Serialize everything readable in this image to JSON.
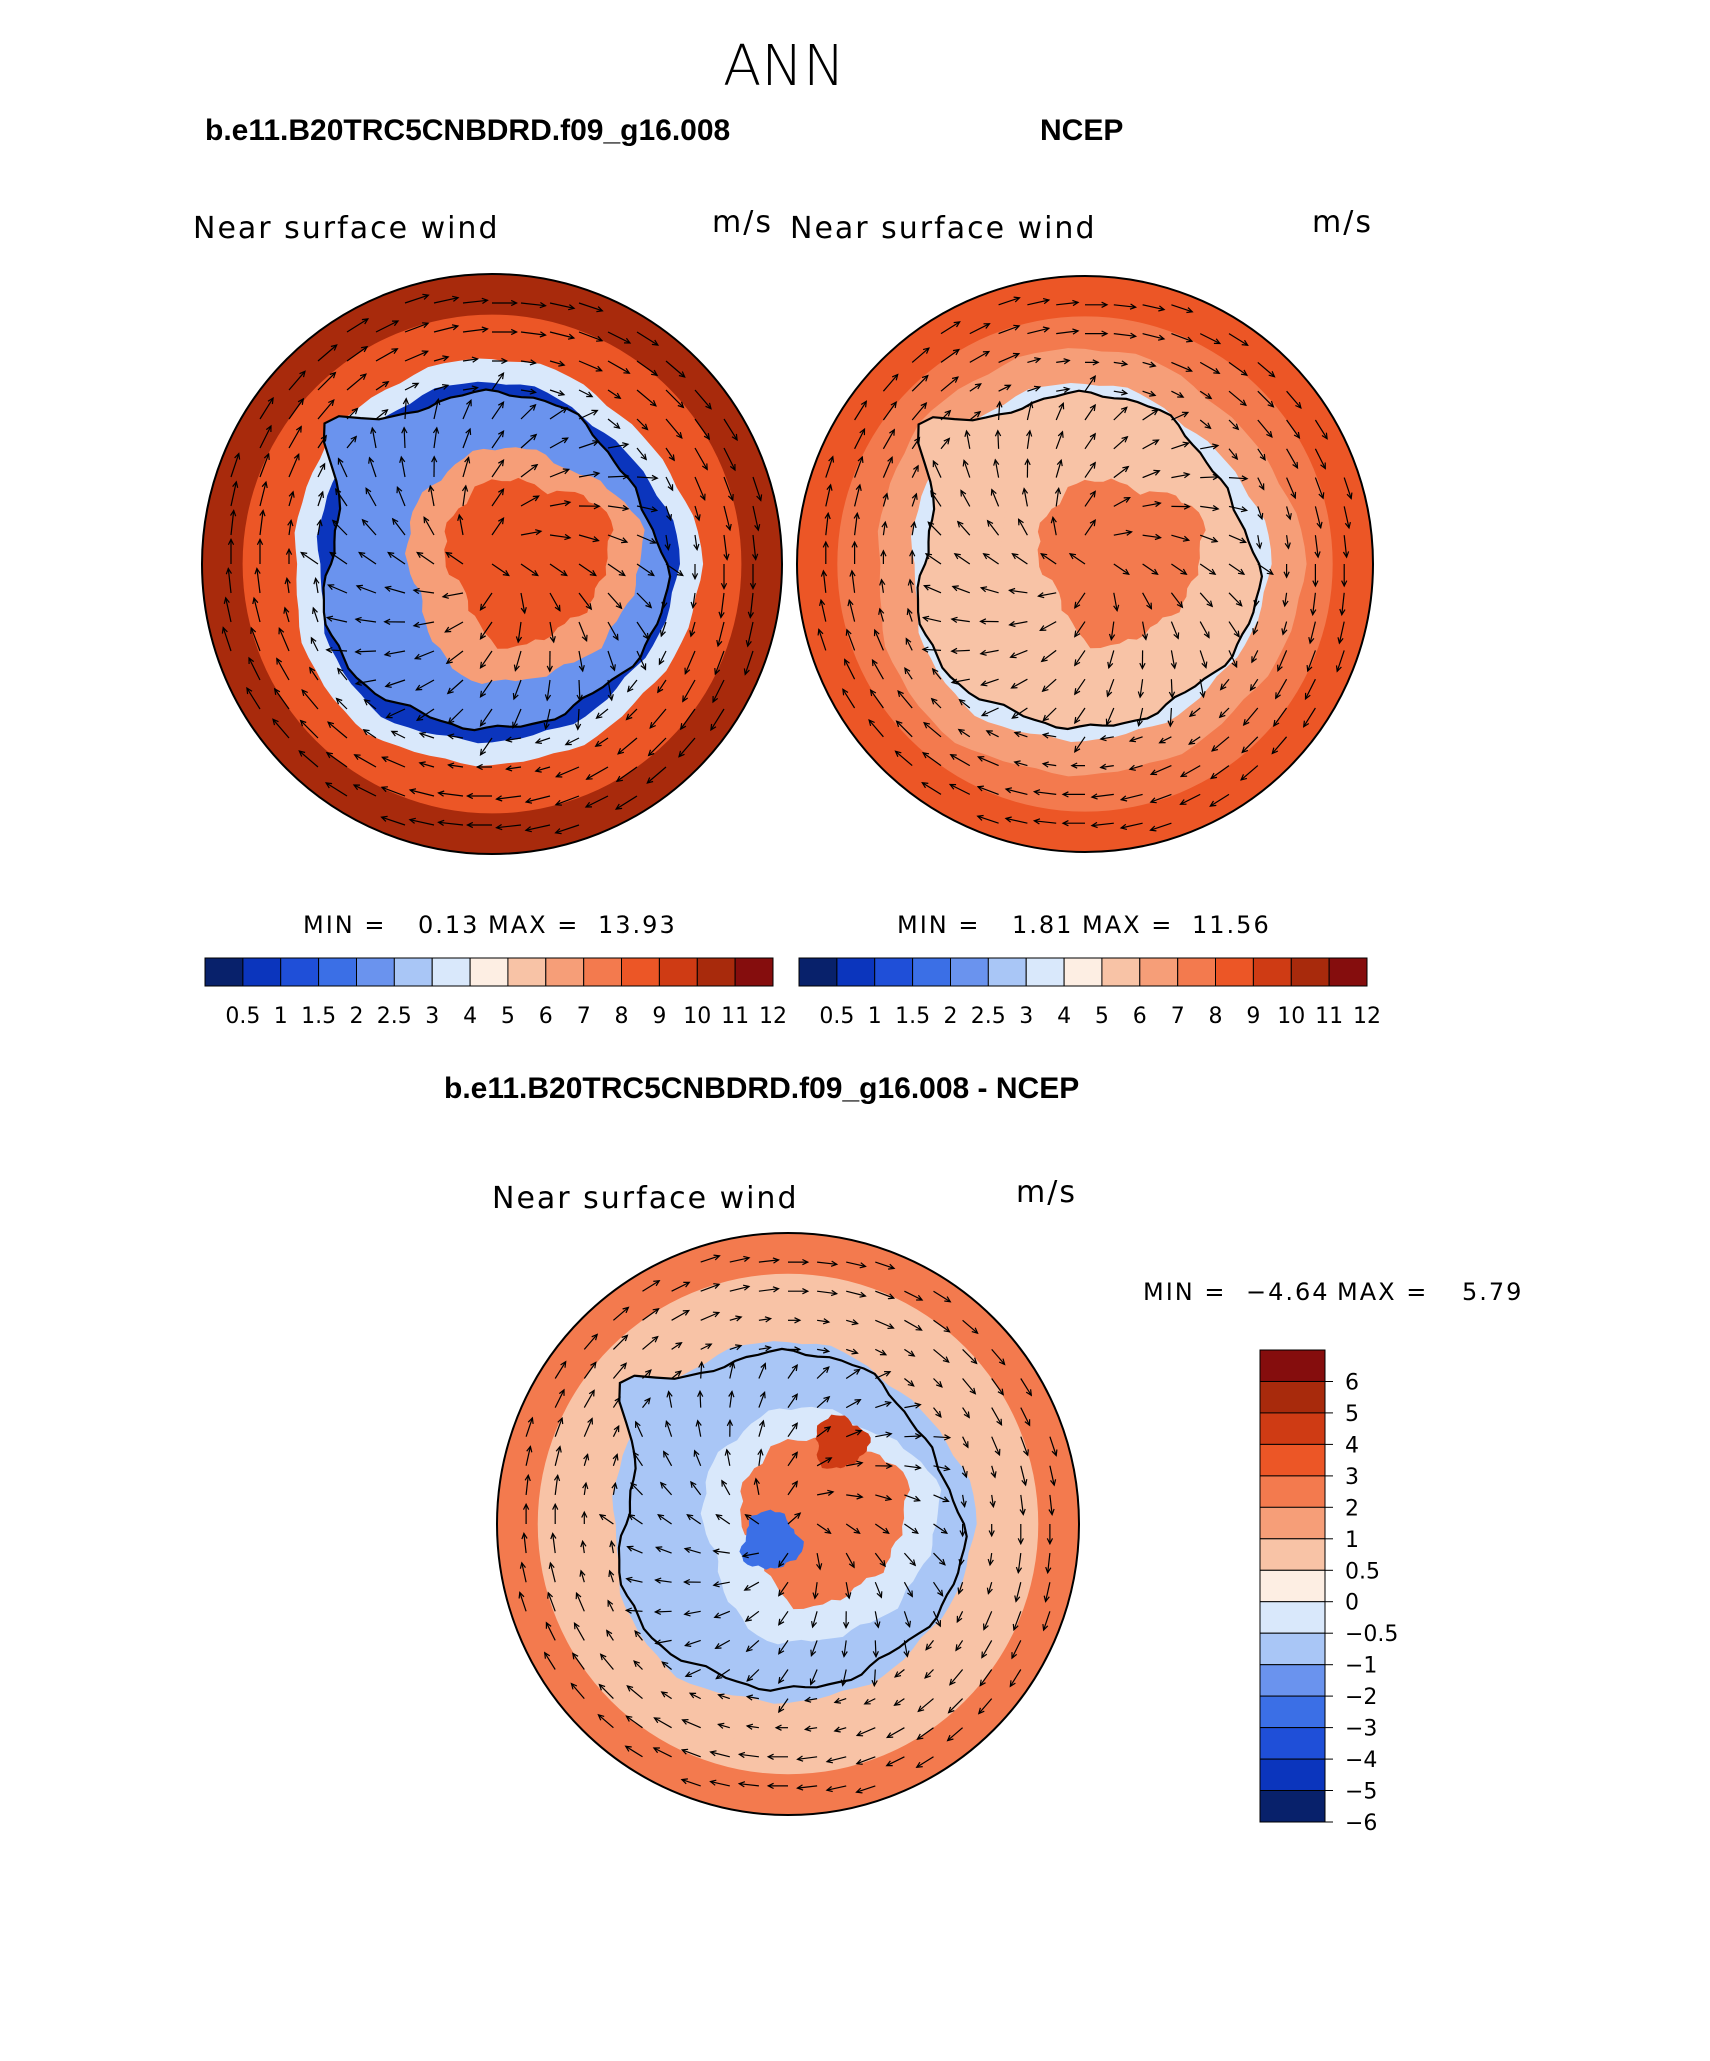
{
  "page": {
    "title": "ANN"
  },
  "colors": {
    "levels": [
      "#08216b",
      "#0b35bd",
      "#1f4fd8",
      "#3b6fe6",
      "#6a93ee",
      "#a9c6f6",
      "#d9e8fb",
      "#fdeee3",
      "#f8c3a6",
      "#f69e78",
      "#f37a4e",
      "#ec5626",
      "#cf3b14",
      "#a82a0c",
      "#850d0d"
    ],
    "outline": "#000000"
  },
  "chart_data": [
    {
      "type": "heatmap",
      "title": "b.e11.B20TRC5CNBDRD.f09_g16.008",
      "field_label": "Near surface wind",
      "units": "m/s",
      "min_label": "MIN =",
      "min_value": "0.13",
      "max_label": "MAX =",
      "max_value": "13.93",
      "colorbar_ticks": [
        "0.5",
        "1",
        "1.5",
        "2",
        "2.5",
        "3",
        "4",
        "5",
        "6",
        "7",
        "8",
        "9",
        "10",
        "11",
        "12"
      ],
      "colorbar_ticks_num": [
        0.5,
        1,
        1.5,
        2,
        2.5,
        3,
        4,
        5,
        6,
        7,
        8,
        9,
        10,
        11,
        12
      ],
      "field": {
        "coast_band": 0.92,
        "interior": 8.5,
        "ring": 1.0,
        "ring_pos": 0.62,
        "ring_width": 0.08,
        "open_ocean": 10.5
      }
    },
    {
      "type": "heatmap",
      "title": "NCEP",
      "field_label": "Near surface wind",
      "units": "m/s",
      "min_label": "MIN =",
      "min_value": "1.81",
      "max_label": "MAX =",
      "max_value": "11.56",
      "colorbar_ticks": [
        "0.5",
        "1",
        "1.5",
        "2",
        "2.5",
        "3",
        "4",
        "5",
        "6",
        "7",
        "8",
        "9",
        "10",
        "11",
        "12"
      ],
      "colorbar_ticks_num": [
        0.5,
        1,
        1.5,
        2,
        2.5,
        3,
        4,
        5,
        6,
        7,
        8,
        9,
        10,
        11,
        12
      ],
      "field": {
        "interior": 8.0,
        "ring": 4.0,
        "ring_pos": 0.62,
        "ring_width": 0.12,
        "open_ocean": 9.0
      }
    },
    {
      "type": "heatmap",
      "title": "b.e11.B20TRC5CNBDRD.f09_g16.008 - NCEP",
      "field_label": "Near surface wind",
      "units": "m/s",
      "min_label": "MIN =",
      "min_value": "−4.64",
      "max_label": "MAX =",
      "max_value": "5.79",
      "colorbar_ticks": [
        "6",
        "5",
        "4",
        "3",
        "2",
        "1",
        "0.5",
        "0",
        "−0.5",
        "−1",
        "−2",
        "−3",
        "−4",
        "−5",
        "−6"
      ],
      "colorbar_ticks_num": [
        6,
        5,
        4,
        3,
        2,
        1,
        0.5,
        0,
        -0.5,
        -1,
        -2,
        -3,
        -4,
        -5,
        -6
      ],
      "field": {
        "interior": 1.5,
        "ring": -1.5,
        "ring_pos": 0.62,
        "ring_width": 0.15,
        "open_ocean": 1.2
      }
    }
  ]
}
